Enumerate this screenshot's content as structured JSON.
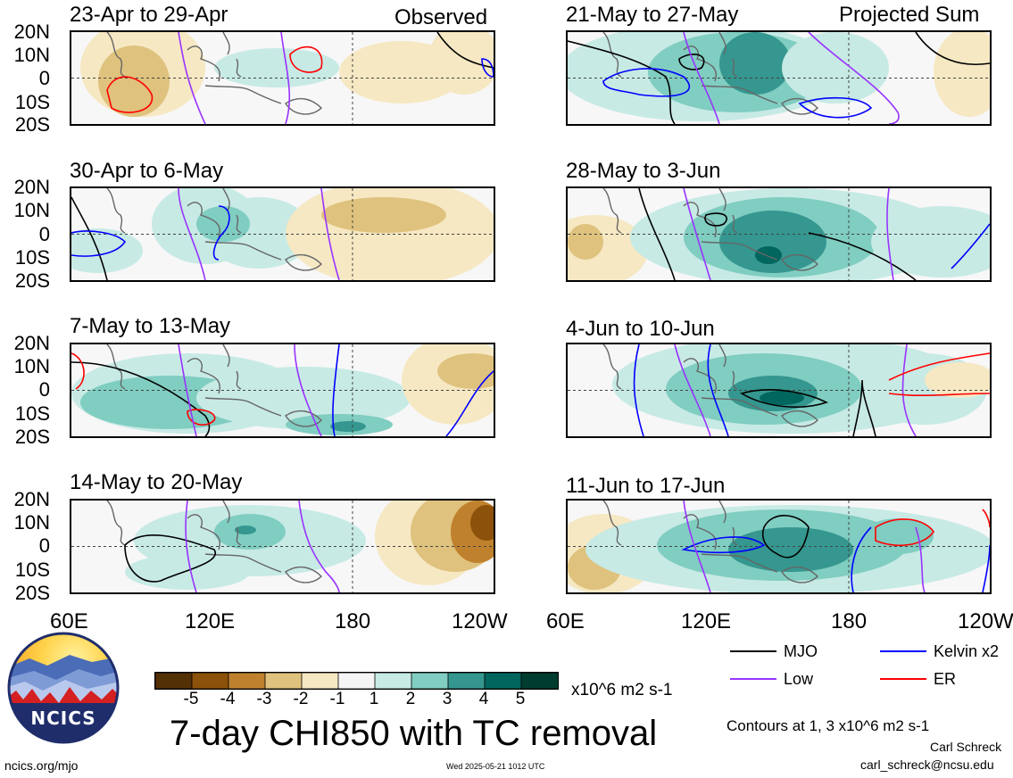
{
  "left_label": "Observed",
  "right_label": "Projected Sum",
  "lat_labels": [
    "20N",
    "10N",
    "0",
    "10S",
    "20S"
  ],
  "lon_labels": [
    "60E",
    "120E",
    "180",
    "120W"
  ],
  "panels": [
    {
      "id": "p1",
      "title": "23-Apr to 29-Apr"
    },
    {
      "id": "p2",
      "title": "30-Apr to 6-May"
    },
    {
      "id": "p3",
      "title": "7-May to 13-May"
    },
    {
      "id": "p4",
      "title": "14-May to 20-May"
    },
    {
      "id": "p5",
      "title": "21-May to 27-May"
    },
    {
      "id": "p6",
      "title": "28-May to 3-Jun"
    },
    {
      "id": "p7",
      "title": "4-Jun to 10-Jun"
    },
    {
      "id": "p8",
      "title": "11-Jun to 17-Jun"
    }
  ],
  "colorbar": {
    "ticks": [
      "-5",
      "-4",
      "-3",
      "-2",
      "-1",
      "1",
      "2",
      "3",
      "4",
      "5"
    ],
    "colors": [
      "#543005",
      "#8c510a",
      "#bf812d",
      "#dfc27d",
      "#f6e8c3",
      "#f5f5f5",
      "#c7eae5",
      "#80cdc1",
      "#35978f",
      "#01665e",
      "#003c30"
    ],
    "units": "x10^6 m2 s-1"
  },
  "legend": [
    {
      "name": "MJO",
      "color": "#000000"
    },
    {
      "name": "Kelvin x2",
      "color": "#0000ff"
    },
    {
      "name": "Low",
      "color": "#9933ff"
    },
    {
      "name": "ER",
      "color": "#ff0000"
    }
  ],
  "logo_text": "NCICS",
  "main_title": "7-day CHI850 with TC removal",
  "contour_note": "Contours at 1, 3 x10^6 m2 s-1",
  "author": "Carl Schreck",
  "email": "carl_schreck@ncsu.edu",
  "url": "ncics.org/mjo",
  "timestamp": "Wed 2025-05-21 1012 UTC"
}
